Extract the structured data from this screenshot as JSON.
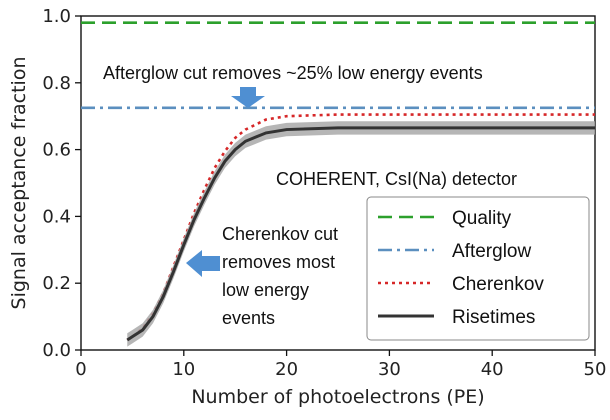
{
  "chart_data": {
    "type": "line",
    "title": "",
    "xlabel": "Number of photoelectrons (PE)",
    "ylabel": "Signal acceptance fraction",
    "xlim": [
      0,
      50
    ],
    "ylim": [
      0,
      1.0
    ],
    "xticks": [
      0,
      10,
      20,
      30,
      40,
      50
    ],
    "yticks": [
      0.0,
      0.2,
      0.4,
      0.6,
      0.8,
      1.0
    ],
    "xtick_labels": [
      "0",
      "10",
      "20",
      "30",
      "40",
      "50"
    ],
    "ytick_labels": [
      "0.0",
      "0.2",
      "0.4",
      "0.6",
      "0.8",
      "1.0"
    ],
    "grid": false,
    "legend_position": "bottom-right",
    "series": [
      {
        "name": "Quality",
        "style": "dashed",
        "color": "#2ca02c",
        "x": [
          0,
          50
        ],
        "values": [
          0.98,
          0.98
        ]
      },
      {
        "name": "Afterglow",
        "style": "dashdot",
        "color": "#5b8fbf",
        "x": [
          0,
          50
        ],
        "values": [
          0.725,
          0.725
        ]
      },
      {
        "name": "Cherenkov",
        "style": "dotted",
        "color": "#d62728",
        "x": [
          4.5,
          5,
          6,
          7,
          8,
          9,
          10,
          11,
          12,
          13,
          14,
          15,
          16,
          18,
          20,
          25,
          30,
          40,
          50
        ],
        "values": [
          0.03,
          0.04,
          0.065,
          0.11,
          0.17,
          0.25,
          0.33,
          0.41,
          0.48,
          0.545,
          0.595,
          0.635,
          0.66,
          0.69,
          0.7,
          0.705,
          0.705,
          0.705,
          0.705
        ]
      },
      {
        "name": "Risetimes",
        "style": "solid",
        "color": "#333333",
        "x": [
          4.5,
          5,
          6,
          7,
          8,
          9,
          10,
          11,
          12,
          13,
          14,
          15,
          16,
          18,
          20,
          25,
          30,
          40,
          50
        ],
        "values": [
          0.03,
          0.04,
          0.06,
          0.1,
          0.16,
          0.235,
          0.315,
          0.39,
          0.455,
          0.515,
          0.565,
          0.6,
          0.625,
          0.65,
          0.66,
          0.665,
          0.665,
          0.665,
          0.665
        ],
        "band": 0.02
      }
    ],
    "annotations": [
      {
        "name": "afterglow-note",
        "text": "Afterglow cut removes ~25% low energy events"
      },
      {
        "name": "detector-note",
        "text": "COHERENT, CsI(Na) detector"
      },
      {
        "name": "cherenkov-note",
        "lines": [
          "Cherenkov cut",
          "removes most",
          "low energy",
          "events"
        ]
      }
    ],
    "arrow_color": "#4f8fd2",
    "legend_edge": "#888888"
  }
}
